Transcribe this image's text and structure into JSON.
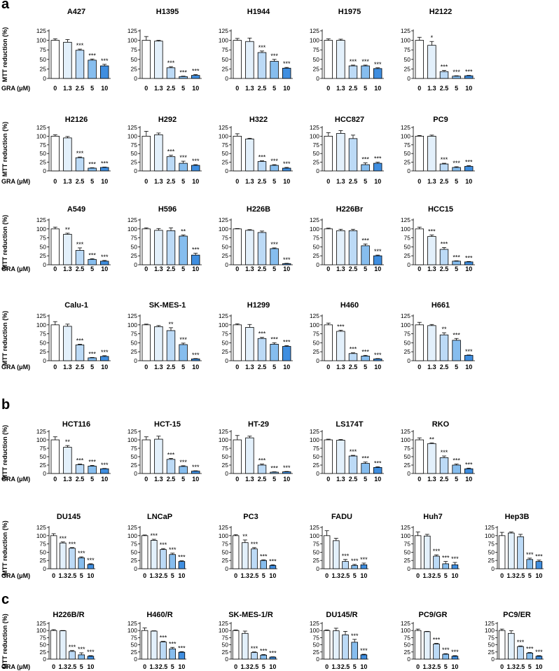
{
  "panels": [
    {
      "letter": "a",
      "ylabel": "MTT reduction (%)",
      "xlabel": "GRA (μM)"
    },
    {
      "letter": "b",
      "ylabel": "MTT reduction (%)",
      "xlabel": "GRA (μM)"
    },
    {
      "letter": "c",
      "ylabel": "MTT reduction (%)",
      "xlabel": "GRA (μM)"
    }
  ],
  "axis": {
    "categories": [
      "0",
      "1.3",
      "2.5",
      "5",
      "10"
    ],
    "yticks": [
      "0",
      "25",
      "50",
      "75",
      "100",
      "125"
    ],
    "ylim": [
      0,
      125
    ]
  },
  "colors": {
    "bars": [
      "#ffffff",
      "#e3f0fb",
      "#bcdaf6",
      "#86bdee",
      "#3f8ee0"
    ],
    "outline": "#000000"
  },
  "chart_data": [
    {
      "type": "bar",
      "panel": "a",
      "title": "A427",
      "categories": [
        "0",
        "1.3",
        "2.5",
        "5",
        "10"
      ],
      "values": [
        100,
        95,
        74,
        48,
        33
      ],
      "errors": [
        4,
        7,
        3,
        3,
        4
      ],
      "significance": [
        "",
        "",
        "***",
        "***",
        "***"
      ]
    },
    {
      "type": "bar",
      "panel": "a",
      "title": "H1395",
      "categories": [
        "0",
        "1.3",
        "2.5",
        "5",
        "10"
      ],
      "values": [
        100,
        98,
        28,
        5,
        8
      ],
      "errors": [
        10,
        2,
        3,
        1,
        2
      ],
      "significance": [
        "",
        "",
        "***",
        "***",
        "***"
      ]
    },
    {
      "type": "bar",
      "panel": "a",
      "title": "H1944",
      "categories": [
        "0",
        "1.3",
        "2.5",
        "5",
        "10"
      ],
      "values": [
        100,
        97,
        68,
        45,
        27
      ],
      "errors": [
        5,
        9,
        4,
        5,
        2
      ],
      "significance": [
        "",
        "",
        "***",
        "***",
        "***"
      ]
    },
    {
      "type": "bar",
      "panel": "a",
      "title": "H1975",
      "categories": [
        "0",
        "1.3",
        "2.5",
        "5",
        "10"
      ],
      "values": [
        100,
        100,
        33,
        33,
        26
      ],
      "errors": [
        4,
        3,
        2,
        2,
        2
      ],
      "significance": [
        "",
        "",
        "***",
        "***",
        "***"
      ]
    },
    {
      "type": "bar",
      "panel": "a",
      "title": "H2122",
      "categories": [
        "0",
        "1.3",
        "2.5",
        "5",
        "10"
      ],
      "values": [
        100,
        87,
        18,
        6,
        7
      ],
      "errors": [
        8,
        10,
        3,
        1,
        1
      ],
      "significance": [
        "",
        "*",
        "***",
        "***",
        "***"
      ]
    },
    {
      "type": "bar",
      "panel": "a",
      "title": "H2126",
      "categories": [
        "0",
        "1.3",
        "2.5",
        "5",
        "10"
      ],
      "values": [
        100,
        95,
        38,
        8,
        10
      ],
      "errors": [
        4,
        4,
        2,
        1,
        1
      ],
      "significance": [
        "",
        "",
        "***",
        "***",
        "***"
      ]
    },
    {
      "type": "bar",
      "panel": "a",
      "title": "H292",
      "categories": [
        "0",
        "1.3",
        "2.5",
        "5",
        "10"
      ],
      "values": [
        100,
        104,
        41,
        22,
        16
      ],
      "errors": [
        14,
        5,
        4,
        6,
        2
      ],
      "significance": [
        "",
        "",
        "***",
        "***",
        "***"
      ]
    },
    {
      "type": "bar",
      "panel": "a",
      "title": "H322",
      "categories": [
        "0",
        "1.3",
        "2.5",
        "5",
        "10"
      ],
      "values": [
        100,
        92,
        27,
        16,
        8
      ],
      "errors": [
        7,
        2,
        2,
        2,
        2
      ],
      "significance": [
        "",
        "",
        "***",
        "***",
        "***"
      ]
    },
    {
      "type": "bar",
      "panel": "a",
      "title": "HCC827",
      "categories": [
        "0",
        "1.3",
        "2.5",
        "5",
        "10"
      ],
      "values": [
        100,
        108,
        93,
        18,
        22
      ],
      "errors": [
        10,
        8,
        10,
        5,
        3
      ],
      "significance": [
        "",
        "",
        "",
        "***",
        "***"
      ]
    },
    {
      "type": "bar",
      "panel": "a",
      "title": "PC9",
      "categories": [
        "0",
        "1.3",
        "2.5",
        "5",
        "10"
      ],
      "values": [
        100,
        100,
        20,
        10,
        13
      ],
      "errors": [
        2,
        3,
        2,
        2,
        2
      ],
      "significance": [
        "",
        "",
        "***",
        "***",
        "***"
      ]
    },
    {
      "type": "bar",
      "panel": "a",
      "title": "A549",
      "categories": [
        "0",
        "1.3",
        "2.5",
        "5",
        "10"
      ],
      "values": [
        100,
        85,
        40,
        15,
        10
      ],
      "errors": [
        5,
        3,
        7,
        2,
        2
      ],
      "significance": [
        "",
        "**",
        "***",
        "***",
        "***"
      ]
    },
    {
      "type": "bar",
      "panel": "a",
      "title": "H596",
      "categories": [
        "0",
        "1.3",
        "2.5",
        "5",
        "10"
      ],
      "values": [
        100,
        96,
        95,
        80,
        27
      ],
      "errors": [
        3,
        5,
        8,
        3,
        5
      ],
      "significance": [
        "",
        "",
        "",
        "**",
        "***"
      ]
    },
    {
      "type": "bar",
      "panel": "a",
      "title": "H226B",
      "categories": [
        "0",
        "1.3",
        "2.5",
        "5",
        "10"
      ],
      "values": [
        100,
        96,
        90,
        45,
        3
      ],
      "errors": [
        1,
        2,
        4,
        2,
        1
      ],
      "significance": [
        "",
        "",
        "",
        "***",
        "***"
      ]
    },
    {
      "type": "bar",
      "panel": "a",
      "title": "H226Br",
      "categories": [
        "0",
        "1.3",
        "2.5",
        "5",
        "10"
      ],
      "values": [
        100,
        95,
        95,
        53,
        25
      ],
      "errors": [
        2,
        4,
        4,
        5,
        2
      ],
      "significance": [
        "",
        "",
        "",
        "***",
        "***"
      ]
    },
    {
      "type": "bar",
      "panel": "a",
      "title": "HCC15",
      "categories": [
        "0",
        "1.3",
        "2.5",
        "5",
        "10"
      ],
      "values": [
        100,
        79,
        43,
        10,
        8
      ],
      "errors": [
        5,
        4,
        5,
        1,
        1
      ],
      "significance": [
        "",
        "***",
        "***",
        "***",
        "***"
      ]
    },
    {
      "type": "bar",
      "panel": "a",
      "title": "Calu-1",
      "categories": [
        "0",
        "1.3",
        "2.5",
        "5",
        "10"
      ],
      "values": [
        100,
        96,
        44,
        8,
        12
      ],
      "errors": [
        9,
        6,
        2,
        1,
        2
      ],
      "significance": [
        "",
        "",
        "***",
        "***",
        "***"
      ]
    },
    {
      "type": "bar",
      "panel": "a",
      "title": "SK-MES-1",
      "categories": [
        "0",
        "1.3",
        "2.5",
        "5",
        "10"
      ],
      "values": [
        100,
        95,
        84,
        45,
        5
      ],
      "errors": [
        2,
        3,
        8,
        4,
        1
      ],
      "significance": [
        "",
        "",
        "**",
        "***",
        "***"
      ]
    },
    {
      "type": "bar",
      "panel": "a",
      "title": "H1299",
      "categories": [
        "0",
        "1.3",
        "2.5",
        "5",
        "10"
      ],
      "values": [
        100,
        93,
        62,
        46,
        40
      ],
      "errors": [
        3,
        8,
        3,
        4,
        2
      ],
      "significance": [
        "",
        "",
        "***",
        "***",
        "***"
      ]
    },
    {
      "type": "bar",
      "panel": "a",
      "title": "H460",
      "categories": [
        "0",
        "1.3",
        "2.5",
        "5",
        "10"
      ],
      "values": [
        100,
        82,
        20,
        13,
        5
      ],
      "errors": [
        5,
        3,
        2,
        2,
        1
      ],
      "significance": [
        "",
        "***",
        "***",
        "***",
        "***"
      ]
    },
    {
      "type": "bar",
      "panel": "a",
      "title": "H661",
      "categories": [
        "0",
        "1.3",
        "2.5",
        "5",
        "10"
      ],
      "values": [
        100,
        98,
        72,
        57,
        15
      ],
      "errors": [
        7,
        3,
        6,
        5,
        1
      ],
      "significance": [
        "",
        "",
        "**",
        "***",
        "***"
      ]
    },
    {
      "type": "bar",
      "panel": "b",
      "title": "HCT116",
      "categories": [
        "0",
        "1.3",
        "2.5",
        "5",
        "10"
      ],
      "values": [
        100,
        78,
        26,
        22,
        14
      ],
      "errors": [
        9,
        5,
        2,
        2,
        1
      ],
      "significance": [
        "",
        "**",
        "***",
        "***",
        "***"
      ]
    },
    {
      "type": "bar",
      "panel": "b",
      "title": "HCT-15",
      "categories": [
        "0",
        "1.3",
        "2.5",
        "5",
        "10"
      ],
      "values": [
        100,
        102,
        42,
        21,
        7
      ],
      "errors": [
        9,
        9,
        3,
        2,
        1
      ],
      "significance": [
        "",
        "",
        "***",
        "***",
        "***"
      ]
    },
    {
      "type": "bar",
      "panel": "b",
      "title": "HT-29",
      "categories": [
        "0",
        "1.3",
        "2.5",
        "5",
        "10"
      ],
      "values": [
        100,
        106,
        25,
        4,
        5
      ],
      "errors": [
        13,
        5,
        3,
        1,
        1
      ],
      "significance": [
        "",
        "",
        "***",
        "***",
        "***"
      ]
    },
    {
      "type": "bar",
      "panel": "b",
      "title": "LS174T",
      "categories": [
        "0",
        "1.3",
        "2.5",
        "5",
        "10"
      ],
      "values": [
        100,
        99,
        52,
        30,
        18
      ],
      "errors": [
        2,
        2,
        2,
        4,
        2
      ],
      "significance": [
        "",
        "",
        "***",
        "***",
        "***"
      ]
    },
    {
      "type": "bar",
      "panel": "b",
      "title": "RKO",
      "categories": [
        "0",
        "1.3",
        "2.5",
        "5",
        "10"
      ],
      "values": [
        100,
        89,
        47,
        25,
        14
      ],
      "errors": [
        6,
        2,
        5,
        3,
        2
      ],
      "significance": [
        "",
        "**",
        "***",
        "***",
        "***"
      ]
    },
    {
      "type": "bar",
      "panel": "b",
      "title": "DU145",
      "categories": [
        "0",
        "1.3",
        "2.5",
        "5",
        "10"
      ],
      "values": [
        100,
        78,
        62,
        33,
        13
      ],
      "errors": [
        6,
        3,
        2,
        3,
        2
      ],
      "significance": [
        "",
        "***",
        "***",
        "***",
        "***"
      ]
    },
    {
      "type": "bar",
      "panel": "b",
      "title": "LNCaP",
      "categories": [
        "0",
        "1.3",
        "2.5",
        "5",
        "10"
      ],
      "values": [
        100,
        86,
        58,
        43,
        22
      ],
      "errors": [
        2,
        3,
        3,
        4,
        2
      ],
      "significance": [
        "",
        "***",
        "***",
        "***",
        "***"
      ]
    },
    {
      "type": "bar",
      "panel": "b",
      "title": "PC3",
      "categories": [
        "0",
        "1.3",
        "2.5",
        "5",
        "10"
      ],
      "values": [
        100,
        79,
        60,
        25,
        10
      ],
      "errors": [
        3,
        8,
        4,
        2,
        2
      ],
      "significance": [
        "",
        "**",
        "***",
        "***",
        "***"
      ]
    },
    {
      "type": "bar",
      "panel": "b",
      "title": "FADU",
      "categories": [
        "0",
        "1.3",
        "2.5",
        "5",
        "10"
      ],
      "values": [
        100,
        85,
        22,
        10,
        12
      ],
      "errors": [
        15,
        7,
        6,
        3,
        5
      ],
      "significance": [
        "",
        "",
        "***",
        "***",
        "***"
      ]
    },
    {
      "type": "bar",
      "panel": "b",
      "title": "Huh7",
      "categories": [
        "0",
        "1.3",
        "2.5",
        "5",
        "10"
      ],
      "values": [
        100,
        99,
        38,
        15,
        12
      ],
      "errors": [
        11,
        5,
        4,
        7,
        7
      ],
      "significance": [
        "",
        "",
        "***",
        "***",
        "***"
      ]
    },
    {
      "type": "bar",
      "panel": "b",
      "title": "Hep3B",
      "categories": [
        "0",
        "1.3",
        "2.5",
        "5",
        "10"
      ],
      "values": [
        100,
        108,
        97,
        28,
        22
      ],
      "errors": [
        10,
        3,
        7,
        4,
        4
      ],
      "significance": [
        "",
        "",
        "",
        "***",
        "***"
      ]
    },
    {
      "type": "bar",
      "panel": "c",
      "title": "H226B/R",
      "categories": [
        "0",
        "1.3",
        "2.5",
        "5",
        "10"
      ],
      "values": [
        100,
        99,
        27,
        15,
        10
      ],
      "errors": [
        3,
        1,
        3,
        7,
        2
      ],
      "significance": [
        "",
        "",
        "***",
        "***",
        "***"
      ]
    },
    {
      "type": "bar",
      "panel": "c",
      "title": "H460/R",
      "categories": [
        "0",
        "1.3",
        "2.5",
        "5",
        "10"
      ],
      "values": [
        100,
        98,
        60,
        36,
        24
      ],
      "errors": [
        9,
        1,
        2,
        5,
        2
      ],
      "significance": [
        "",
        "",
        "***",
        "***",
        "***"
      ]
    },
    {
      "type": "bar",
      "panel": "c",
      "title": "SK-MES-1/R",
      "categories": [
        "0",
        "1.3",
        "2.5",
        "5",
        "10"
      ],
      "values": [
        100,
        90,
        23,
        14,
        7
      ],
      "errors": [
        2,
        8,
        2,
        2,
        1
      ],
      "significance": [
        "",
        "",
        "***",
        "***",
        "***"
      ]
    },
    {
      "type": "bar",
      "panel": "c",
      "title": "DU145/R",
      "categories": [
        "0",
        "1.3",
        "2.5",
        "5",
        "10"
      ],
      "values": [
        100,
        99,
        85,
        59,
        15
      ],
      "errors": [
        2,
        9,
        12,
        10,
        2
      ],
      "significance": [
        "",
        "",
        "",
        "***",
        "***"
      ]
    },
    {
      "type": "bar",
      "panel": "c",
      "title": "PC9/GR",
      "categories": [
        "0",
        "1.3",
        "2.5",
        "5",
        "10"
      ],
      "values": [
        100,
        96,
        53,
        17,
        10
      ],
      "errors": [
        5,
        1,
        2,
        2,
        2
      ],
      "significance": [
        "",
        "",
        "***",
        "***",
        "***"
      ]
    },
    {
      "type": "bar",
      "panel": "c",
      "title": "PC9/ER",
      "categories": [
        "0",
        "1.3",
        "2.5",
        "5",
        "10"
      ],
      "values": [
        100,
        90,
        44,
        21,
        10
      ],
      "errors": [
        5,
        9,
        2,
        2,
        2
      ],
      "significance": [
        "",
        "",
        "***",
        "***",
        "***"
      ]
    }
  ]
}
